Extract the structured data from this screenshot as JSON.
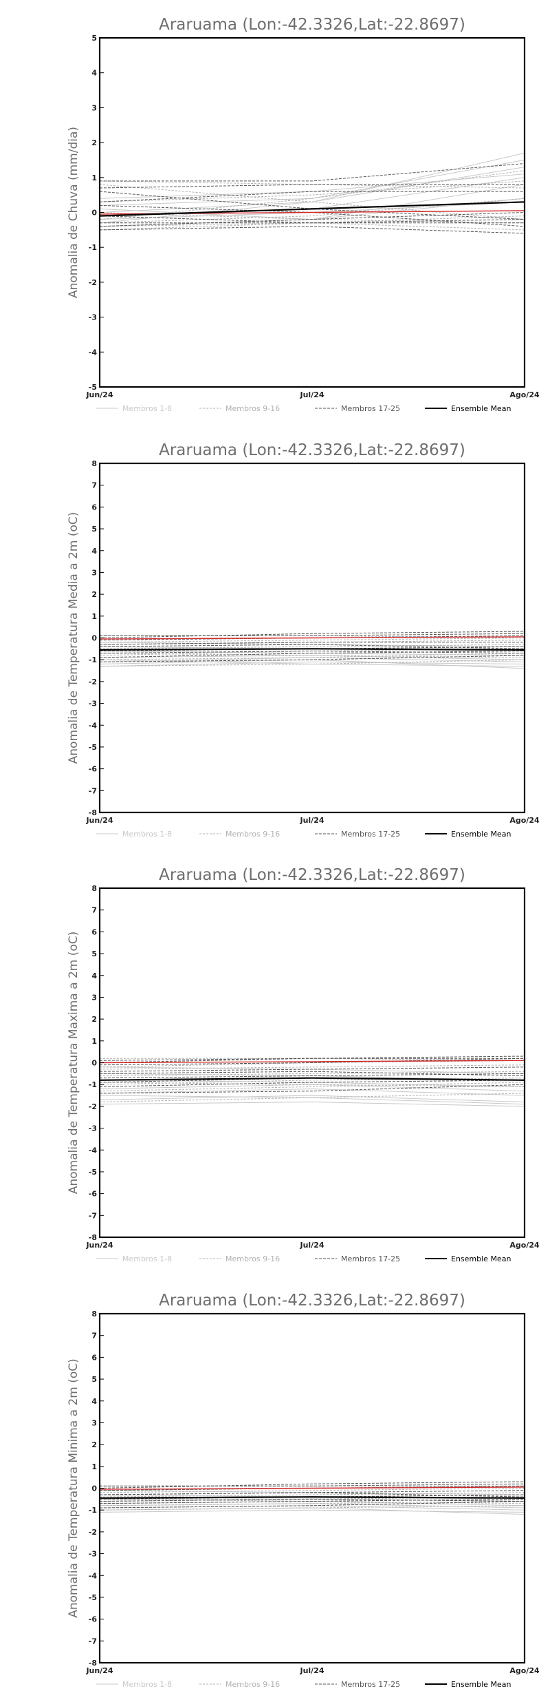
{
  "chart_data": [
    {
      "type": "line",
      "title": "Araruama (Lon:-42.3326,Lat:-22.8697)",
      "ylabel": "Anomalia de Chuva (mm/dia)",
      "xlabel": "",
      "x": [
        "Jun/24",
        "Jul/24",
        "Ago/24"
      ],
      "ylim": [
        -5,
        5
      ],
      "yticks": [
        -5,
        -4,
        -3,
        -2,
        -1,
        0,
        1,
        2,
        3,
        4,
        5
      ],
      "legend": [
        "Membros 1-8",
        "Membros 9-16",
        "Membros 17-25",
        "Ensemble Mean"
      ],
      "legend_placement": "bottom",
      "grid": false,
      "series": [
        {
          "group": 1,
          "values": [
            -0.3,
            0.3,
            1.7
          ]
        },
        {
          "group": 1,
          "values": [
            0.2,
            0.4,
            1.5
          ]
        },
        {
          "group": 1,
          "values": [
            -0.1,
            0.1,
            1.0
          ]
        },
        {
          "group": 1,
          "values": [
            0.1,
            -0.2,
            0.4
          ]
        },
        {
          "group": 1,
          "values": [
            -0.4,
            -0.2,
            0.8
          ]
        },
        {
          "group": 1,
          "values": [
            0.0,
            0.3,
            1.3
          ]
        },
        {
          "group": 1,
          "values": [
            -0.2,
            0.0,
            0.3
          ]
        },
        {
          "group": 1,
          "values": [
            0.4,
            0.6,
            1.1
          ]
        },
        {
          "group": 2,
          "values": [
            0.9,
            0.8,
            0.7
          ]
        },
        {
          "group": 2,
          "values": [
            0.8,
            0.3,
            -0.2
          ]
        },
        {
          "group": 2,
          "values": [
            -0.5,
            -0.3,
            -0.1
          ]
        },
        {
          "group": 2,
          "values": [
            -0.3,
            -0.1,
            0.4
          ]
        },
        {
          "group": 2,
          "values": [
            -0.2,
            0.4,
            1.2
          ]
        },
        {
          "group": 2,
          "values": [
            0.0,
            -0.2,
            -0.3
          ]
        },
        {
          "group": 2,
          "values": [
            -0.4,
            -0.3,
            -0.5
          ]
        },
        {
          "group": 2,
          "values": [
            0.3,
            0.5,
            0.9
          ]
        },
        {
          "group": 3,
          "values": [
            0.9,
            0.9,
            1.4
          ]
        },
        {
          "group": 3,
          "values": [
            0.7,
            0.8,
            0.8
          ]
        },
        {
          "group": 3,
          "values": [
            0.6,
            0.1,
            -0.2
          ]
        },
        {
          "group": 3,
          "values": [
            0.3,
            0.6,
            0.6
          ]
        },
        {
          "group": 3,
          "values": [
            -0.5,
            -0.4,
            -0.6
          ]
        },
        {
          "group": 3,
          "values": [
            -0.1,
            -0.3,
            -0.2
          ]
        },
        {
          "group": 3,
          "values": [
            -0.4,
            -0.2,
            0.0
          ]
        },
        {
          "group": 3,
          "values": [
            0.2,
            0.0,
            -0.4
          ]
        },
        {
          "group": 3,
          "values": [
            -0.3,
            -0.3,
            -0.3
          ]
        },
        {
          "group": "red",
          "values": [
            -0.05,
            0.0,
            0.05
          ]
        },
        {
          "group": "mean",
          "values": [
            -0.1,
            0.1,
            0.3
          ]
        }
      ]
    },
    {
      "type": "line",
      "title": "Araruama (Lon:-42.3326,Lat:-22.8697)",
      "ylabel": "Anomalia de Temperatura Media a 2m (oC)",
      "xlabel": "",
      "x": [
        "Jun/24",
        "Jul/24",
        "Ago/24"
      ],
      "ylim": [
        -8,
        8
      ],
      "yticks": [
        -8,
        -7,
        -6,
        -5,
        -4,
        -3,
        -2,
        -1,
        0,
        1,
        2,
        3,
        4,
        5,
        6,
        7,
        8
      ],
      "legend": [
        "Membros 1-8",
        "Membros 9-16",
        "Membros 17-25",
        "Ensemble Mean"
      ],
      "legend_placement": "bottom",
      "grid": false,
      "series": [
        {
          "group": 1,
          "values": [
            -1.3,
            -1.1,
            -1.2
          ]
        },
        {
          "group": 1,
          "values": [
            -1.2,
            -1.0,
            -1.4
          ]
        },
        {
          "group": 1,
          "values": [
            -0.9,
            -0.8,
            -1.0
          ]
        },
        {
          "group": 1,
          "values": [
            -0.6,
            -0.7,
            -0.8
          ]
        },
        {
          "group": 1,
          "values": [
            -1.0,
            -1.2,
            -1.3
          ]
        },
        {
          "group": 1,
          "values": [
            -0.4,
            -0.5,
            -0.6
          ]
        },
        {
          "group": 1,
          "values": [
            -0.2,
            -0.3,
            -0.4
          ]
        },
        {
          "group": 1,
          "values": [
            -1.1,
            -0.9,
            -1.1
          ]
        },
        {
          "group": 2,
          "values": [
            0.1,
            0.1,
            0.0
          ]
        },
        {
          "group": 2,
          "values": [
            -0.3,
            -0.2,
            -0.1
          ]
        },
        {
          "group": 2,
          "values": [
            -0.8,
            -0.6,
            -0.5
          ]
        },
        {
          "group": 2,
          "values": [
            -1.0,
            -0.9,
            -0.7
          ]
        },
        {
          "group": 2,
          "values": [
            -0.5,
            -0.4,
            -0.3
          ]
        },
        {
          "group": 2,
          "values": [
            -1.3,
            -1.2,
            -1.0
          ]
        },
        {
          "group": 2,
          "values": [
            -0.2,
            -0.1,
            0.0
          ]
        },
        {
          "group": 2,
          "values": [
            -0.7,
            -0.8,
            -0.9
          ]
        },
        {
          "group": 3,
          "values": [
            0.0,
            0.2,
            0.3
          ]
        },
        {
          "group": 3,
          "values": [
            -0.1,
            0.0,
            0.1
          ]
        },
        {
          "group": 3,
          "values": [
            -0.3,
            -0.2,
            -0.2
          ]
        },
        {
          "group": 3,
          "values": [
            -0.6,
            -0.5,
            -0.4
          ]
        },
        {
          "group": 3,
          "values": [
            -0.9,
            -0.7,
            -0.6
          ]
        },
        {
          "group": 3,
          "values": [
            -1.1,
            -1.0,
            -0.8
          ]
        },
        {
          "group": 3,
          "values": [
            -0.4,
            -0.3,
            -0.5
          ]
        },
        {
          "group": 3,
          "values": [
            -0.7,
            -0.6,
            -0.7
          ]
        },
        {
          "group": 3,
          "values": [
            0.1,
            0.1,
            0.2
          ]
        },
        {
          "group": "red",
          "values": [
            -0.05,
            0.0,
            0.05
          ]
        },
        {
          "group": "mean",
          "values": [
            -0.55,
            -0.5,
            -0.55
          ]
        }
      ]
    },
    {
      "type": "line",
      "title": "Araruama (Lon:-42.3326,Lat:-22.8697)",
      "ylabel": "Anomalia de Temperatura Maxima a 2m (oC)",
      "xlabel": "",
      "x": [
        "Jun/24",
        "Jul/24",
        "Ago/24"
      ],
      "ylim": [
        -8,
        8
      ],
      "yticks": [
        -8,
        -7,
        -6,
        -5,
        -4,
        -3,
        -2,
        -1,
        0,
        1,
        2,
        3,
        4,
        5,
        6,
        7,
        8
      ],
      "legend": [
        "Membros 1-8",
        "Membros 9-16",
        "Membros 17-25",
        "Ensemble Mean"
      ],
      "legend_placement": "bottom",
      "grid": false,
      "series": [
        {
          "group": 1,
          "values": [
            -1.9,
            -1.8,
            -2.0
          ]
        },
        {
          "group": 1,
          "values": [
            -1.7,
            -1.5,
            -1.8
          ]
        },
        {
          "group": 1,
          "values": [
            -1.2,
            -1.0,
            -1.3
          ]
        },
        {
          "group": 1,
          "values": [
            -0.8,
            -0.9,
            -1.1
          ]
        },
        {
          "group": 1,
          "values": [
            -1.5,
            -1.6,
            -1.9
          ]
        },
        {
          "group": 1,
          "values": [
            -0.5,
            -0.6,
            -0.8
          ]
        },
        {
          "group": 1,
          "values": [
            -0.2,
            -0.3,
            -0.5
          ]
        },
        {
          "group": 1,
          "values": [
            -1.4,
            -1.2,
            -1.5
          ]
        },
        {
          "group": 2,
          "values": [
            0.2,
            0.2,
            0.1
          ]
        },
        {
          "group": 2,
          "values": [
            -0.3,
            -0.2,
            -0.1
          ]
        },
        {
          "group": 2,
          "values": [
            -1.0,
            -0.8,
            -0.7
          ]
        },
        {
          "group": 2,
          "values": [
            -1.3,
            -1.1,
            -0.9
          ]
        },
        {
          "group": 2,
          "values": [
            -0.6,
            -0.5,
            -0.4
          ]
        },
        {
          "group": 2,
          "values": [
            -1.8,
            -1.6,
            -1.4
          ]
        },
        {
          "group": 2,
          "values": [
            -0.2,
            0.0,
            0.1
          ]
        },
        {
          "group": 2,
          "values": [
            -0.9,
            -1.0,
            -1.1
          ]
        },
        {
          "group": 3,
          "values": [
            0.0,
            0.2,
            0.3
          ]
        },
        {
          "group": 3,
          "values": [
            -0.1,
            0.0,
            0.2
          ]
        },
        {
          "group": 3,
          "values": [
            -0.4,
            -0.3,
            -0.2
          ]
        },
        {
          "group": 3,
          "values": [
            -0.7,
            -0.6,
            -0.5
          ]
        },
        {
          "group": 3,
          "values": [
            -1.1,
            -0.9,
            -0.8
          ]
        },
        {
          "group": 3,
          "values": [
            -1.4,
            -1.3,
            -1.0
          ]
        },
        {
          "group": 3,
          "values": [
            -0.5,
            -0.4,
            -0.6
          ]
        },
        {
          "group": 3,
          "values": [
            -0.9,
            -0.7,
            -0.8
          ]
        },
        {
          "group": 3,
          "values": [
            0.1,
            0.2,
            0.2
          ]
        },
        {
          "group": "red",
          "values": [
            0.0,
            0.05,
            0.1
          ]
        },
        {
          "group": "mean",
          "values": [
            -0.8,
            -0.7,
            -0.8
          ]
        }
      ]
    },
    {
      "type": "line",
      "title": "Araruama (Lon:-42.3326,Lat:-22.8697)",
      "ylabel": "Anomalia de Temperatura Minima a 2m (oC)",
      "xlabel": "",
      "x": [
        "Jun/24",
        "Jul/24",
        "Ago/24"
      ],
      "ylim": [
        -8,
        8
      ],
      "yticks": [
        -8,
        -7,
        -6,
        -5,
        -4,
        -3,
        -2,
        -1,
        0,
        1,
        2,
        3,
        4,
        5,
        6,
        7,
        8
      ],
      "legend": [
        "Membros 1-8",
        "Membros 9-16",
        "Membros 17-25",
        "Ensemble Mean"
      ],
      "legend_placement": "bottom",
      "grid": false,
      "series": [
        {
          "group": 1,
          "values": [
            -1.1,
            -1.0,
            -1.1
          ]
        },
        {
          "group": 1,
          "values": [
            -0.9,
            -0.8,
            -1.0
          ]
        },
        {
          "group": 1,
          "values": [
            -0.7,
            -0.6,
            -0.8
          ]
        },
        {
          "group": 1,
          "values": [
            -0.5,
            -0.5,
            -0.6
          ]
        },
        {
          "group": 1,
          "values": [
            -1.0,
            -0.9,
            -1.2
          ]
        },
        {
          "group": 1,
          "values": [
            -0.3,
            -0.4,
            -0.5
          ]
        },
        {
          "group": 1,
          "values": [
            -0.1,
            -0.2,
            -0.3
          ]
        },
        {
          "group": 1,
          "values": [
            -0.8,
            -0.7,
            -0.9
          ]
        },
        {
          "group": 2,
          "values": [
            0.1,
            0.1,
            0.1
          ]
        },
        {
          "group": 2,
          "values": [
            -0.2,
            -0.1,
            0.0
          ]
        },
        {
          "group": 2,
          "values": [
            -0.6,
            -0.5,
            -0.4
          ]
        },
        {
          "group": 2,
          "values": [
            -0.8,
            -0.7,
            -0.6
          ]
        },
        {
          "group": 2,
          "values": [
            -0.4,
            -0.3,
            -0.2
          ]
        },
        {
          "group": 2,
          "values": [
            -1.0,
            -0.9,
            -0.8
          ]
        },
        {
          "group": 2,
          "values": [
            -0.1,
            0.0,
            0.1
          ]
        },
        {
          "group": 2,
          "values": [
            -0.5,
            -0.6,
            -0.7
          ]
        },
        {
          "group": 3,
          "values": [
            0.0,
            0.2,
            0.3
          ]
        },
        {
          "group": 3,
          "values": [
            -0.1,
            0.0,
            0.1
          ]
        },
        {
          "group": 3,
          "values": [
            -0.3,
            -0.2,
            -0.1
          ]
        },
        {
          "group": 3,
          "values": [
            -0.5,
            -0.4,
            -0.3
          ]
        },
        {
          "group": 3,
          "values": [
            -0.7,
            -0.6,
            -0.5
          ]
        },
        {
          "group": 3,
          "values": [
            -0.9,
            -0.8,
            -0.6
          ]
        },
        {
          "group": 3,
          "values": [
            -0.3,
            -0.2,
            -0.4
          ]
        },
        {
          "group": 3,
          "values": [
            -0.6,
            -0.5,
            -0.6
          ]
        },
        {
          "group": 3,
          "values": [
            0.1,
            0.1,
            0.2
          ]
        },
        {
          "group": "red",
          "values": [
            -0.05,
            0.0,
            0.05
          ]
        },
        {
          "group": "mean",
          "values": [
            -0.45,
            -0.4,
            -0.45
          ]
        }
      ]
    }
  ],
  "styles": {
    "group_colors": {
      "1": "#c8c8c8",
      "2": "#b0b0b0",
      "3": "#555555",
      "red": "#d42a2a",
      "mean": "#000000"
    },
    "title_color": "#6e6e6e"
  }
}
